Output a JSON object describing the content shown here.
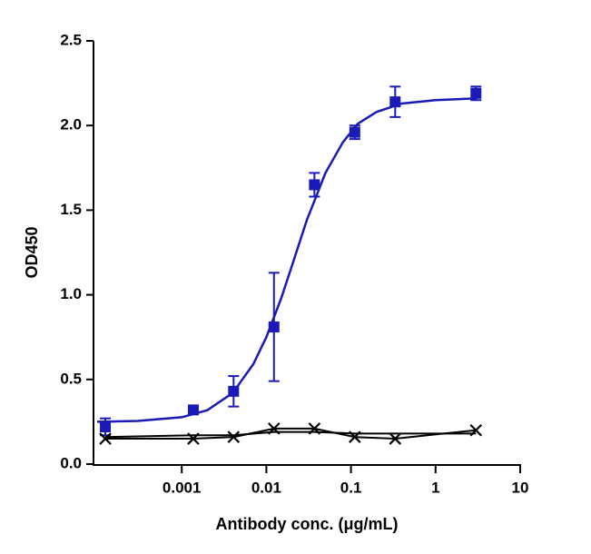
{
  "chart_data": {
    "type": "line",
    "x_label": "Antibody conc. (μg/mL)",
    "y_label": "OD450",
    "xscale": "log",
    "xlim": [
      0.0001,
      10
    ],
    "xticks": [
      0.001,
      0.01,
      0.1,
      1,
      10
    ],
    "ylim": [
      0,
      2.5
    ],
    "yticks": [
      {
        "value": 0,
        "label": "0.0"
      },
      0.5,
      {
        "value": 1,
        "label": "1.0"
      },
      1.5,
      {
        "value": 2,
        "label": "2.0"
      },
      2.5
    ],
    "x": [
      0.000125,
      0.00137,
      0.0041,
      0.0123,
      0.037,
      0.111,
      0.333,
      3
    ],
    "series": [
      {
        "color": "#1a1ab8",
        "marker": "square",
        "line": false,
        "values": [
          0.22,
          0.32,
          0.43,
          0.81,
          1.65,
          1.96,
          2.14,
          2.19
        ],
        "errors": [
          0.05,
          0.02,
          0.09,
          0.32,
          0.07,
          0.04,
          0.09,
          0.04
        ]
      },
      {
        "color": "#000000",
        "marker": "x",
        "line": true,
        "values": [
          0.15,
          0.15,
          0.16,
          0.21,
          0.21,
          0.16,
          0.15,
          0.2
        ]
      },
      {
        "color": "#000000",
        "marker": "none",
        "line": true,
        "values": [
          0.16,
          0.17,
          0.17,
          0.19,
          0.19,
          0.18,
          0.18,
          0.18
        ]
      }
    ],
    "fit": {
      "color": "#1a1ab8",
      "x": [
        0.0001,
        0.0003,
        0.001,
        0.002,
        0.004,
        0.007,
        0.01,
        0.015,
        0.02,
        0.03,
        0.05,
        0.08,
        0.12,
        0.2,
        0.4,
        1,
        3
      ],
      "values": [
        0.25,
        0.255,
        0.277,
        0.318,
        0.42,
        0.59,
        0.75,
        0.98,
        1.17,
        1.44,
        1.72,
        1.9,
        2.01,
        2.08,
        2.13,
        2.15,
        2.16
      ]
    }
  }
}
